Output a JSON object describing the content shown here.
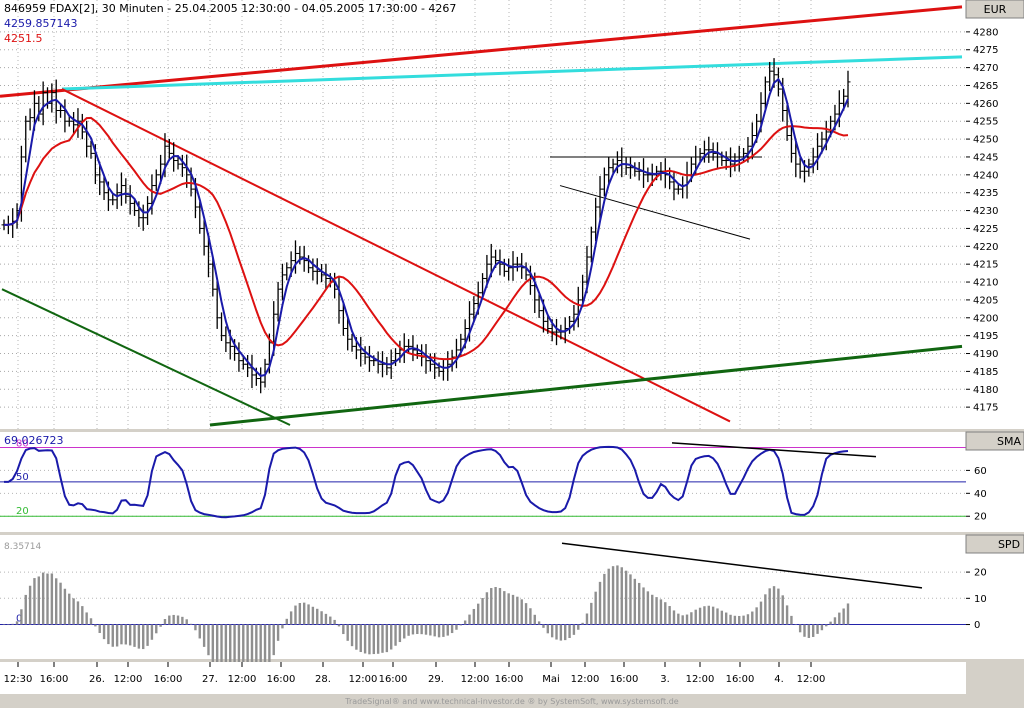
{
  "header": {
    "title": "846959  FDAX[2], 30 Minuten - 25.04.2005 12:30:00 - 04.05.2005 17:30:00 - 4267",
    "value_blue": "4259.857143",
    "value_red": "4251.5"
  },
  "panels": {
    "price_tag": "EUR",
    "sma_tag": "SMA",
    "spd_tag": "SPD",
    "sma_value": "69.026723",
    "spd_value": "8.35714"
  },
  "footer": {
    "credit": "TradeSignal® and www.technical-investor.de ® by SystemSoft, www.systemsoft.de"
  },
  "colors": {
    "price_bar": "#000000",
    "fast_ma": "#1a1aaa",
    "slow_ma": "#dd1111",
    "trend_red": "#dd1111",
    "trend_cyan": "#33dddd",
    "trend_green": "#116611",
    "osc_line": "#1a1aaa",
    "histogram": "#8f8f8f",
    "level_80": "#cc33cc",
    "level_50": "#2222aa",
    "level_20": "#33bb33"
  },
  "chart_data": [
    {
      "type": "ohlc",
      "name": "price",
      "title": "846959  FDAX[2], 30 Minuten",
      "ylim": [
        4170,
        4285
      ],
      "yticks": [
        4175,
        4180,
        4185,
        4190,
        4195,
        4200,
        4205,
        4210,
        4215,
        4220,
        4225,
        4230,
        4235,
        4240,
        4245,
        4250,
        4255,
        4260,
        4265,
        4270,
        4275,
        4280
      ],
      "xticks": [
        "12:30",
        "16:00",
        "26.",
        "12:00",
        "16:00",
        "27.",
        "12:00",
        "16:00",
        "28.",
        "12:00",
        "16:00",
        "29.",
        "12:00",
        "16:00",
        "Mai",
        "12:00",
        "16:00",
        "3.",
        "12:00",
        "16:00",
        "4.",
        "12:00"
      ],
      "closes": [
        4226,
        4226,
        4227,
        4230,
        4245,
        4255,
        4256,
        4260,
        4257,
        4263,
        4260,
        4263,
        4258,
        4258,
        4255,
        4255,
        4254,
        4255,
        4252,
        4248,
        4246,
        4240,
        4238,
        4235,
        4233,
        4233,
        4235,
        4237,
        4234,
        4232,
        4230,
        4228,
        4228,
        4232,
        4237,
        4240,
        4243,
        4248,
        4246,
        4244,
        4243,
        4242,
        4240,
        4236,
        4231,
        4225,
        4220,
        4215,
        4208,
        4200,
        4195,
        4193,
        4192,
        4190,
        4188,
        4187,
        4186,
        4184,
        4183,
        4182,
        4187,
        4193,
        4201,
        4208,
        4212,
        4214,
        4216,
        4218,
        4217,
        4216,
        4214,
        4213,
        4213,
        4212,
        4211,
        4210,
        4208,
        4202,
        4197,
        4194,
        4192,
        4191,
        4190,
        4189,
        4188,
        4188,
        4187,
        4187,
        4186,
        4188,
        4190,
        4191,
        4192,
        4192,
        4191,
        4190,
        4189,
        4188,
        4187,
        4186,
        4185,
        4186,
        4187,
        4189,
        4191,
        4194,
        4197,
        4201,
        4204,
        4207,
        4211,
        4215,
        4217,
        4216,
        4215,
        4213,
        4214,
        4215,
        4215,
        4214,
        4212,
        4209,
        4205,
        4202,
        4199,
        4197,
        4196,
        4196,
        4196,
        4197,
        4199,
        4201,
        4205,
        4210,
        4217,
        4224,
        4231,
        4236,
        4240,
        4242,
        4243,
        4244,
        4243,
        4242,
        4242,
        4241,
        4241,
        4240,
        4240,
        4240,
        4241,
        4241,
        4240,
        4238,
        4236,
        4236,
        4237,
        4240,
        4243,
        4245,
        4246,
        4247,
        4247,
        4246,
        4245,
        4244,
        4244,
        4243,
        4244,
        4245,
        4246,
        4248,
        4251,
        4255,
        4260,
        4266,
        4269,
        4268,
        4264,
        4258,
        4251,
        4246,
        4243,
        4241,
        4241,
        4243,
        4245,
        4248,
        4250,
        4252,
        4255,
        4257,
        4260,
        4262,
        4266
      ]
    },
    {
      "type": "line",
      "name": "SMA oscillator",
      "ylim": [
        8,
        90
      ],
      "yticks": [
        20,
        40,
        60
      ],
      "levels": [
        80,
        50,
        20
      ],
      "current": 69.026723
    },
    {
      "type": "bar",
      "name": "SPD histogram",
      "ylim": [
        -12,
        33
      ],
      "yticks": [
        0,
        10,
        20
      ],
      "current": 8.35714
    }
  ]
}
